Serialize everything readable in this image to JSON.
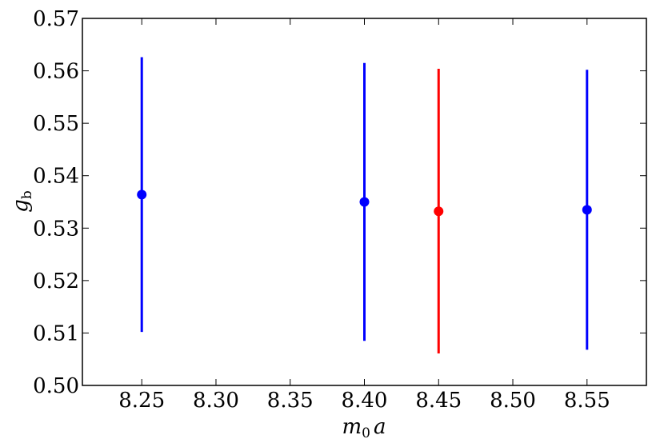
{
  "chart_data": {
    "type": "scatter",
    "title": "",
    "xlabel": {
      "main": "m",
      "sub": "0",
      "tail": "a"
    },
    "ylabel": {
      "main": "g",
      "sub": "b"
    },
    "xlim": [
      8.21,
      8.59
    ],
    "ylim": [
      0.5,
      0.57
    ],
    "xticks": [
      8.25,
      8.3,
      8.35,
      8.4,
      8.45,
      8.5,
      8.55
    ],
    "xtick_labels": [
      "8.25",
      "8.30",
      "8.35",
      "8.40",
      "8.45",
      "8.50",
      "8.55"
    ],
    "yticks": [
      0.5,
      0.51,
      0.52,
      0.53,
      0.54,
      0.55,
      0.56,
      0.57
    ],
    "ytick_labels": [
      "0.50",
      "0.51",
      "0.52",
      "0.53",
      "0.54",
      "0.55",
      "0.56",
      "0.57"
    ],
    "grid": false,
    "legend": null,
    "series": [
      {
        "color": "#0000ff",
        "points": [
          {
            "x": 8.25,
            "y": 0.5364,
            "yerr_low": 0.5102,
            "yerr_high": 0.5626
          },
          {
            "x": 8.4,
            "y": 0.535,
            "yerr_low": 0.5085,
            "yerr_high": 0.5615
          },
          {
            "x": 8.55,
            "y": 0.5335,
            "yerr_low": 0.5068,
            "yerr_high": 0.5602
          }
        ]
      },
      {
        "color": "#ff0000",
        "points": [
          {
            "x": 8.45,
            "y": 0.5332,
            "yerr_low": 0.5061,
            "yerr_high": 0.5604
          }
        ]
      }
    ]
  }
}
